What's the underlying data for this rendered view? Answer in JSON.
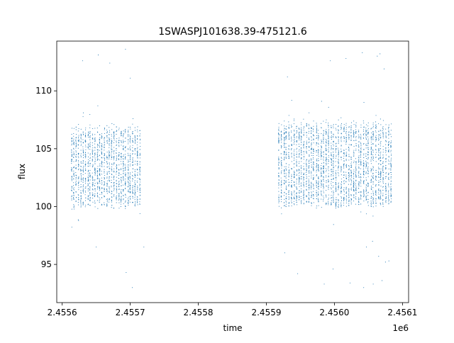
{
  "chart_data": {
    "type": "scatter",
    "title": "1SWASPJ101638.39-475121.6",
    "xlabel": "time",
    "ylabel": "flux",
    "x_offset_label": "1e6",
    "xlim": [
      2455592,
      2456109
    ],
    "ylim": [
      91.7,
      114.3
    ],
    "x_ticks": [
      {
        "value": 2455600,
        "label": "2.4556"
      },
      {
        "value": 2455700,
        "label": "2.4557"
      },
      {
        "value": 2455800,
        "label": "2.4558"
      },
      {
        "value": 2455900,
        "label": "2.4559"
      },
      {
        "value": 2456000,
        "label": "2.4560"
      },
      {
        "value": 2456100,
        "label": "2.4561"
      }
    ],
    "y_ticks": [
      {
        "value": 95,
        "label": "95"
      },
      {
        "value": 100,
        "label": "100"
      },
      {
        "value": 105,
        "label": "105"
      },
      {
        "value": 110,
        "label": "110"
      }
    ],
    "grid": false,
    "legend": "none",
    "marker_color": "#1f77b4",
    "series": [
      {
        "observing_seasons": [
          {
            "start": 2455613,
            "end": 2455717,
            "nights": 30,
            "flux_low": 100.2,
            "flux_high": 106.8,
            "points_per_night": 55
          },
          {
            "start": 2455918,
            "end": 2456086,
            "nights": 46,
            "flux_low": 100.3,
            "flux_high": 107.2,
            "points_per_night": 60
          }
        ],
        "outliers": [
          [
            2455630,
            112.6
          ],
          [
            2455653,
            113.1
          ],
          [
            2455670,
            112.4
          ],
          [
            2455693,
            113.6
          ],
          [
            2455700,
            111.1
          ],
          [
            2455704,
            107.6
          ],
          [
            2455650,
            96.5
          ],
          [
            2455694,
            94.3
          ],
          [
            2455703,
            93.0
          ],
          [
            2455720,
            96.5
          ],
          [
            2455931,
            111.2
          ],
          [
            2455927,
            96.0
          ],
          [
            2455946,
            94.2
          ],
          [
            2455994,
            112.6
          ],
          [
            2456017,
            112.8
          ],
          [
            2456041,
            113.3
          ],
          [
            2456063,
            113.0
          ],
          [
            2456067,
            113.2
          ],
          [
            2456073,
            111.9
          ],
          [
            2456047,
            96.5
          ],
          [
            2456056,
            97.0
          ],
          [
            2456065,
            95.7
          ],
          [
            2456075,
            95.2
          ],
          [
            2456070,
            93.6
          ],
          [
            2456043,
            93.0
          ],
          [
            2456057,
            93.3
          ],
          [
            2456023,
            93.4
          ],
          [
            2455985,
            93.3
          ],
          [
            2455998,
            94.6
          ],
          [
            2456080,
            95.3
          ]
        ]
      }
    ]
  }
}
